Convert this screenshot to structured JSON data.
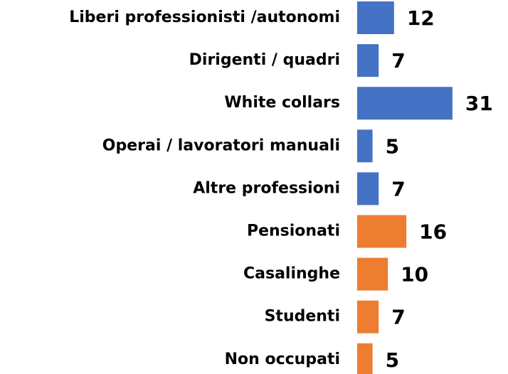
{
  "chart_data": {
    "type": "bar",
    "orientation": "horizontal",
    "categories": [
      "Liberi professionisti /autonomi",
      "Dirigenti / quadri",
      "White collars",
      "Operai / lavoratori manuali",
      "Altre professioni",
      "Pensionati",
      "Casalinghe",
      "Studenti",
      "Non occupati"
    ],
    "values": [
      12,
      7,
      31,
      5,
      7,
      16,
      10,
      7,
      5
    ],
    "colors": [
      "#4472c4",
      "#4472c4",
      "#4472c4",
      "#4472c4",
      "#4472c4",
      "#ed7d31",
      "#ed7d31",
      "#ed7d31",
      "#ed7d31"
    ]
  }
}
